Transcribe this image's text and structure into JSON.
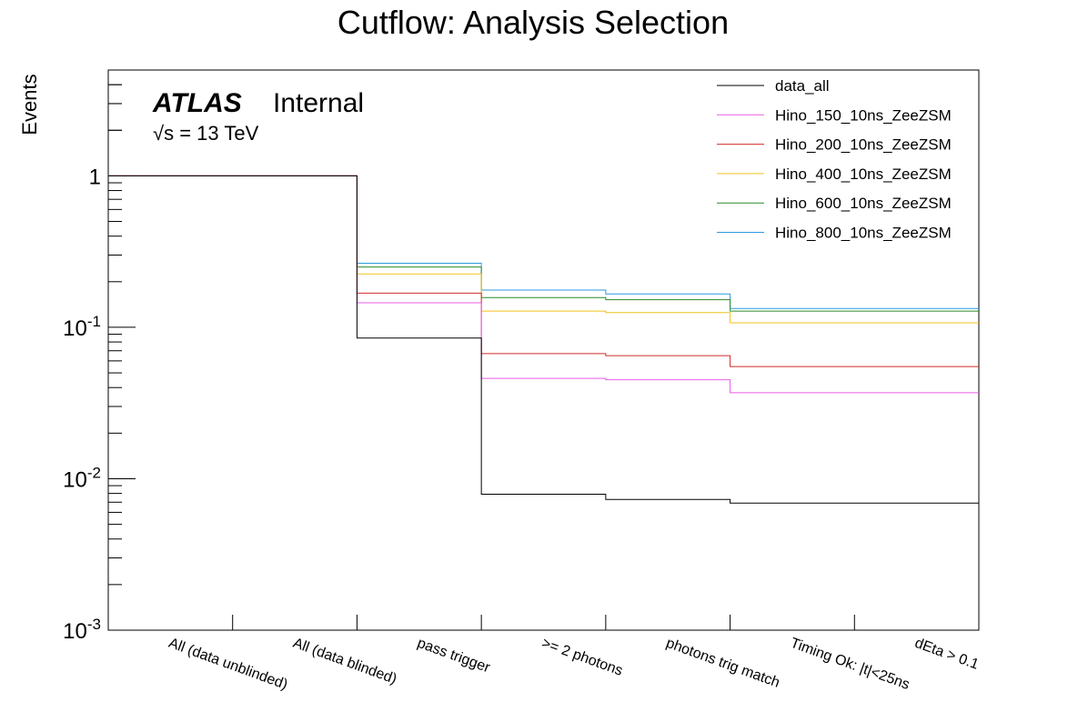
{
  "chart_data": {
    "type": "step",
    "title": "Cutflow: Analysis Selection",
    "ylabel": "Events",
    "xlabel": "",
    "yscale": "log",
    "ylim": [
      0.001,
      5
    ],
    "ytick_labels": [
      "10^-3",
      "10^-2",
      "10^-1",
      "1"
    ],
    "ytick_values": [
      0.001,
      0.01,
      0.1,
      1
    ],
    "categories": [
      "All (data unblinded)",
      "All (data blinded)",
      "pass trigger",
      ">= 2 photons",
      "photons trig match",
      "Timing Ok: |t|<25ns",
      "dEta > 0.1"
    ],
    "annotation": {
      "atlas": "ATLAS",
      "status": "Internal",
      "energy_prefix": "√s",
      "energy": " = 13 TeV"
    },
    "legend_position": "top-right",
    "series": [
      {
        "name": "data_all",
        "color": "#000000",
        "values": [
          1.0,
          1.0,
          0.085,
          0.0079,
          0.0073,
          0.0069,
          0.0069
        ]
      },
      {
        "name": "Hino_150_10ns_ZeeZSM",
        "color": "#e85ce8",
        "values": [
          1.0,
          1.0,
          0.145,
          0.046,
          0.045,
          0.037,
          0.037
        ]
      },
      {
        "name": "Hino_200_10ns_ZeeZSM",
        "color": "#d42a2a",
        "values": [
          1.0,
          1.0,
          0.168,
          0.067,
          0.065,
          0.055,
          0.055
        ]
      },
      {
        "name": "Hino_400_10ns_ZeeZSM",
        "color": "#f2c21b",
        "values": [
          1.0,
          1.0,
          0.225,
          0.128,
          0.125,
          0.107,
          0.107
        ]
      },
      {
        "name": "Hino_600_10ns_ZeeZSM",
        "color": "#2a8a2a",
        "values": [
          1.0,
          1.0,
          0.25,
          0.157,
          0.152,
          0.128,
          0.128
        ]
      },
      {
        "name": "Hino_800_10ns_ZeeZSM",
        "color": "#2a9ae0",
        "values": [
          1.0,
          1.0,
          0.265,
          0.176,
          0.166,
          0.133,
          0.133
        ]
      }
    ]
  }
}
